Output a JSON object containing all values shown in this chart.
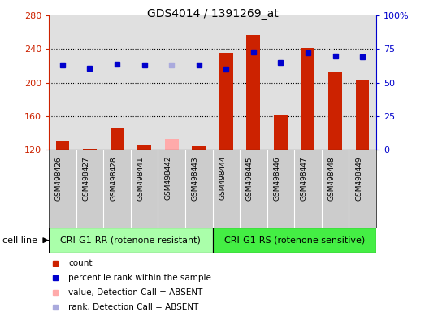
{
  "title": "GDS4014 / 1391269_at",
  "samples": [
    "GSM498426",
    "GSM498427",
    "GSM498428",
    "GSM498441",
    "GSM498442",
    "GSM498443",
    "GSM498444",
    "GSM498445",
    "GSM498446",
    "GSM498447",
    "GSM498448",
    "GSM498449"
  ],
  "count_values": [
    131,
    121,
    146,
    125,
    133,
    124,
    236,
    257,
    162,
    241,
    213,
    204
  ],
  "rank_values": [
    63,
    61,
    64,
    63,
    63,
    63,
    60,
    73,
    65,
    72,
    70,
    69
  ],
  "detection_absent": [
    false,
    false,
    false,
    false,
    true,
    false,
    false,
    false,
    false,
    false,
    false,
    false
  ],
  "group1_label": "CRI-G1-RR (rotenone resistant)",
  "group2_label": "CRI-G1-RS (rotenone sensitive)",
  "group1_count": 6,
  "group2_count": 6,
  "ylim_left": [
    120,
    280
  ],
  "ylim_right": [
    0,
    100
  ],
  "yticks_left": [
    120,
    160,
    200,
    240,
    280
  ],
  "yticks_right": [
    0,
    25,
    50,
    75,
    100
  ],
  "bar_color": "#cc2200",
  "bar_absent_color": "#ffaaaa",
  "dot_color": "#0000cc",
  "dot_absent_color": "#aaaadd",
  "group1_bg": "#aaffaa",
  "group2_bg": "#44ee44",
  "plot_bg": "#e0e0e0",
  "xlabel_bg": "#cccccc",
  "right_axis_color": "#0000cc",
  "left_axis_color": "#cc2200",
  "grid_dotted_values": [
    160,
    200,
    240
  ],
  "legend_items": [
    {
      "color": "#cc2200",
      "label": "count"
    },
    {
      "color": "#0000cc",
      "label": "percentile rank within the sample"
    },
    {
      "color": "#ffaaaa",
      "label": "value, Detection Call = ABSENT"
    },
    {
      "color": "#aaaadd",
      "label": "rank, Detection Call = ABSENT"
    }
  ]
}
